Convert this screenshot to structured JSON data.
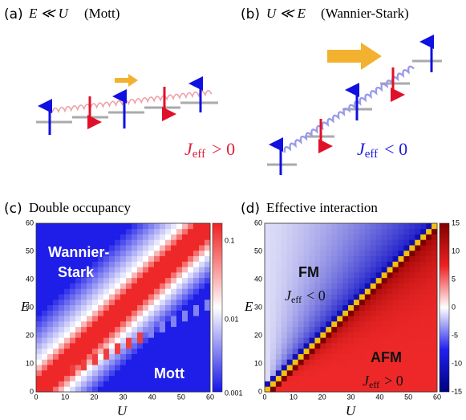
{
  "panels": [
    {
      "label": "(a)",
      "math": "E ≪ U",
      "title": "(Mott)",
      "coupling": {
        "symbol": "J",
        "sub": "eff",
        "rel": "> 0"
      }
    },
    {
      "label": "(b)",
      "math": "U ≪ E",
      "title": "(Wannier-Stark)",
      "coupling": {
        "symbol": "J",
        "sub": "eff",
        "rel": "< 0"
      }
    },
    {
      "label": "(c)",
      "title": "Double occupancy",
      "xlabel": "U",
      "ylabel": "E",
      "xticks": [
        "0",
        "10",
        "20",
        "30",
        "40",
        "50",
        "60"
      ],
      "yticks": [
        "0",
        "10",
        "20",
        "30",
        "40",
        "50",
        "60"
      ],
      "colorbar": [
        "0.1",
        "0.01",
        "0.001"
      ],
      "regions": [
        "Wannier-",
        "Stark",
        "Mott"
      ]
    },
    {
      "label": "(d)",
      "title": "Effective interaction",
      "xlabel": "U",
      "ylabel": "E",
      "xticks": [
        "0",
        "10",
        "20",
        "30",
        "40",
        "50",
        "60"
      ],
      "yticks": [
        "0",
        "10",
        "20",
        "30",
        "40",
        "50",
        "60"
      ],
      "colorbar": [
        "15",
        "10",
        "5",
        "0",
        "-5",
        "-10",
        "-15"
      ],
      "regions": [
        "FM",
        "AFM"
      ],
      "couplings": [
        {
          "symbol": "J",
          "sub": "eff",
          "rel": "< 0"
        },
        {
          "symbol": "J",
          "sub": "eff",
          "rel": "> 0"
        }
      ]
    }
  ]
}
